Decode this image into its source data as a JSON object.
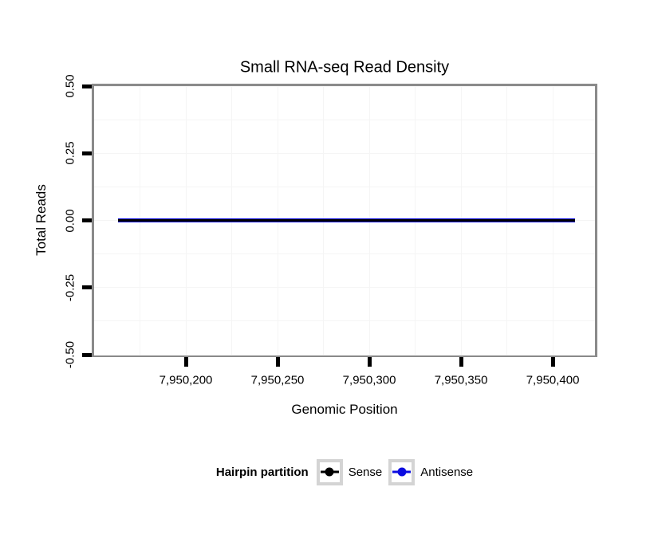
{
  "colors": {
    "background": "#ffffff",
    "panel_border": "#8a8a8a",
    "tick": "#000000",
    "grid_major": "#f5f5f5",
    "grid_minor": "#f5f5f5",
    "legend_key_border": "#d4d4d4",
    "sense": "#000000",
    "antisense": "#0b0be0"
  },
  "chart_data": {
    "type": "line",
    "title": "Small RNA-seq Read Density",
    "xlabel": "Genomic Position",
    "ylabel": "Total Reads",
    "x_axis": {
      "min": 7950150,
      "max": 7950423,
      "major_ticks": [
        7950200,
        7950250,
        7950300,
        7950350,
        7950400
      ],
      "major_labels": [
        "7,950,200",
        "7,950,250",
        "7,950,300",
        "7,950,350",
        "7,950,400"
      ],
      "minor_ticks": [
        7950175,
        7950225,
        7950275,
        7950325,
        7950375
      ]
    },
    "y_axis": {
      "min": -0.5,
      "max": 0.5,
      "major_ticks": [
        0.5,
        0.25,
        0,
        -0.25,
        -0.5
      ],
      "major_labels": [
        "0.50",
        "0.25",
        "0.00",
        "-0.25",
        "-0.50"
      ],
      "minor_ticks": [
        0.375,
        0.125,
        -0.125,
        -0.375
      ]
    },
    "series": [
      {
        "name": "Antisense",
        "color": "#0b0be0",
        "x_start": 7950163,
        "x_end": 7950412,
        "constant_y": 0,
        "line_width": 5
      },
      {
        "name": "Sense",
        "color": "#000000",
        "x_start": 7950163,
        "x_end": 7950412,
        "constant_y": 0,
        "line_width": 3
      }
    ],
    "legend": {
      "title": "Hairpin partition",
      "position": "bottom",
      "entries": [
        {
          "label": "Sense",
          "color": "#000000"
        },
        {
          "label": "Antisense",
          "color": "#0b0be0"
        }
      ]
    },
    "grid": "on (very faint)"
  }
}
